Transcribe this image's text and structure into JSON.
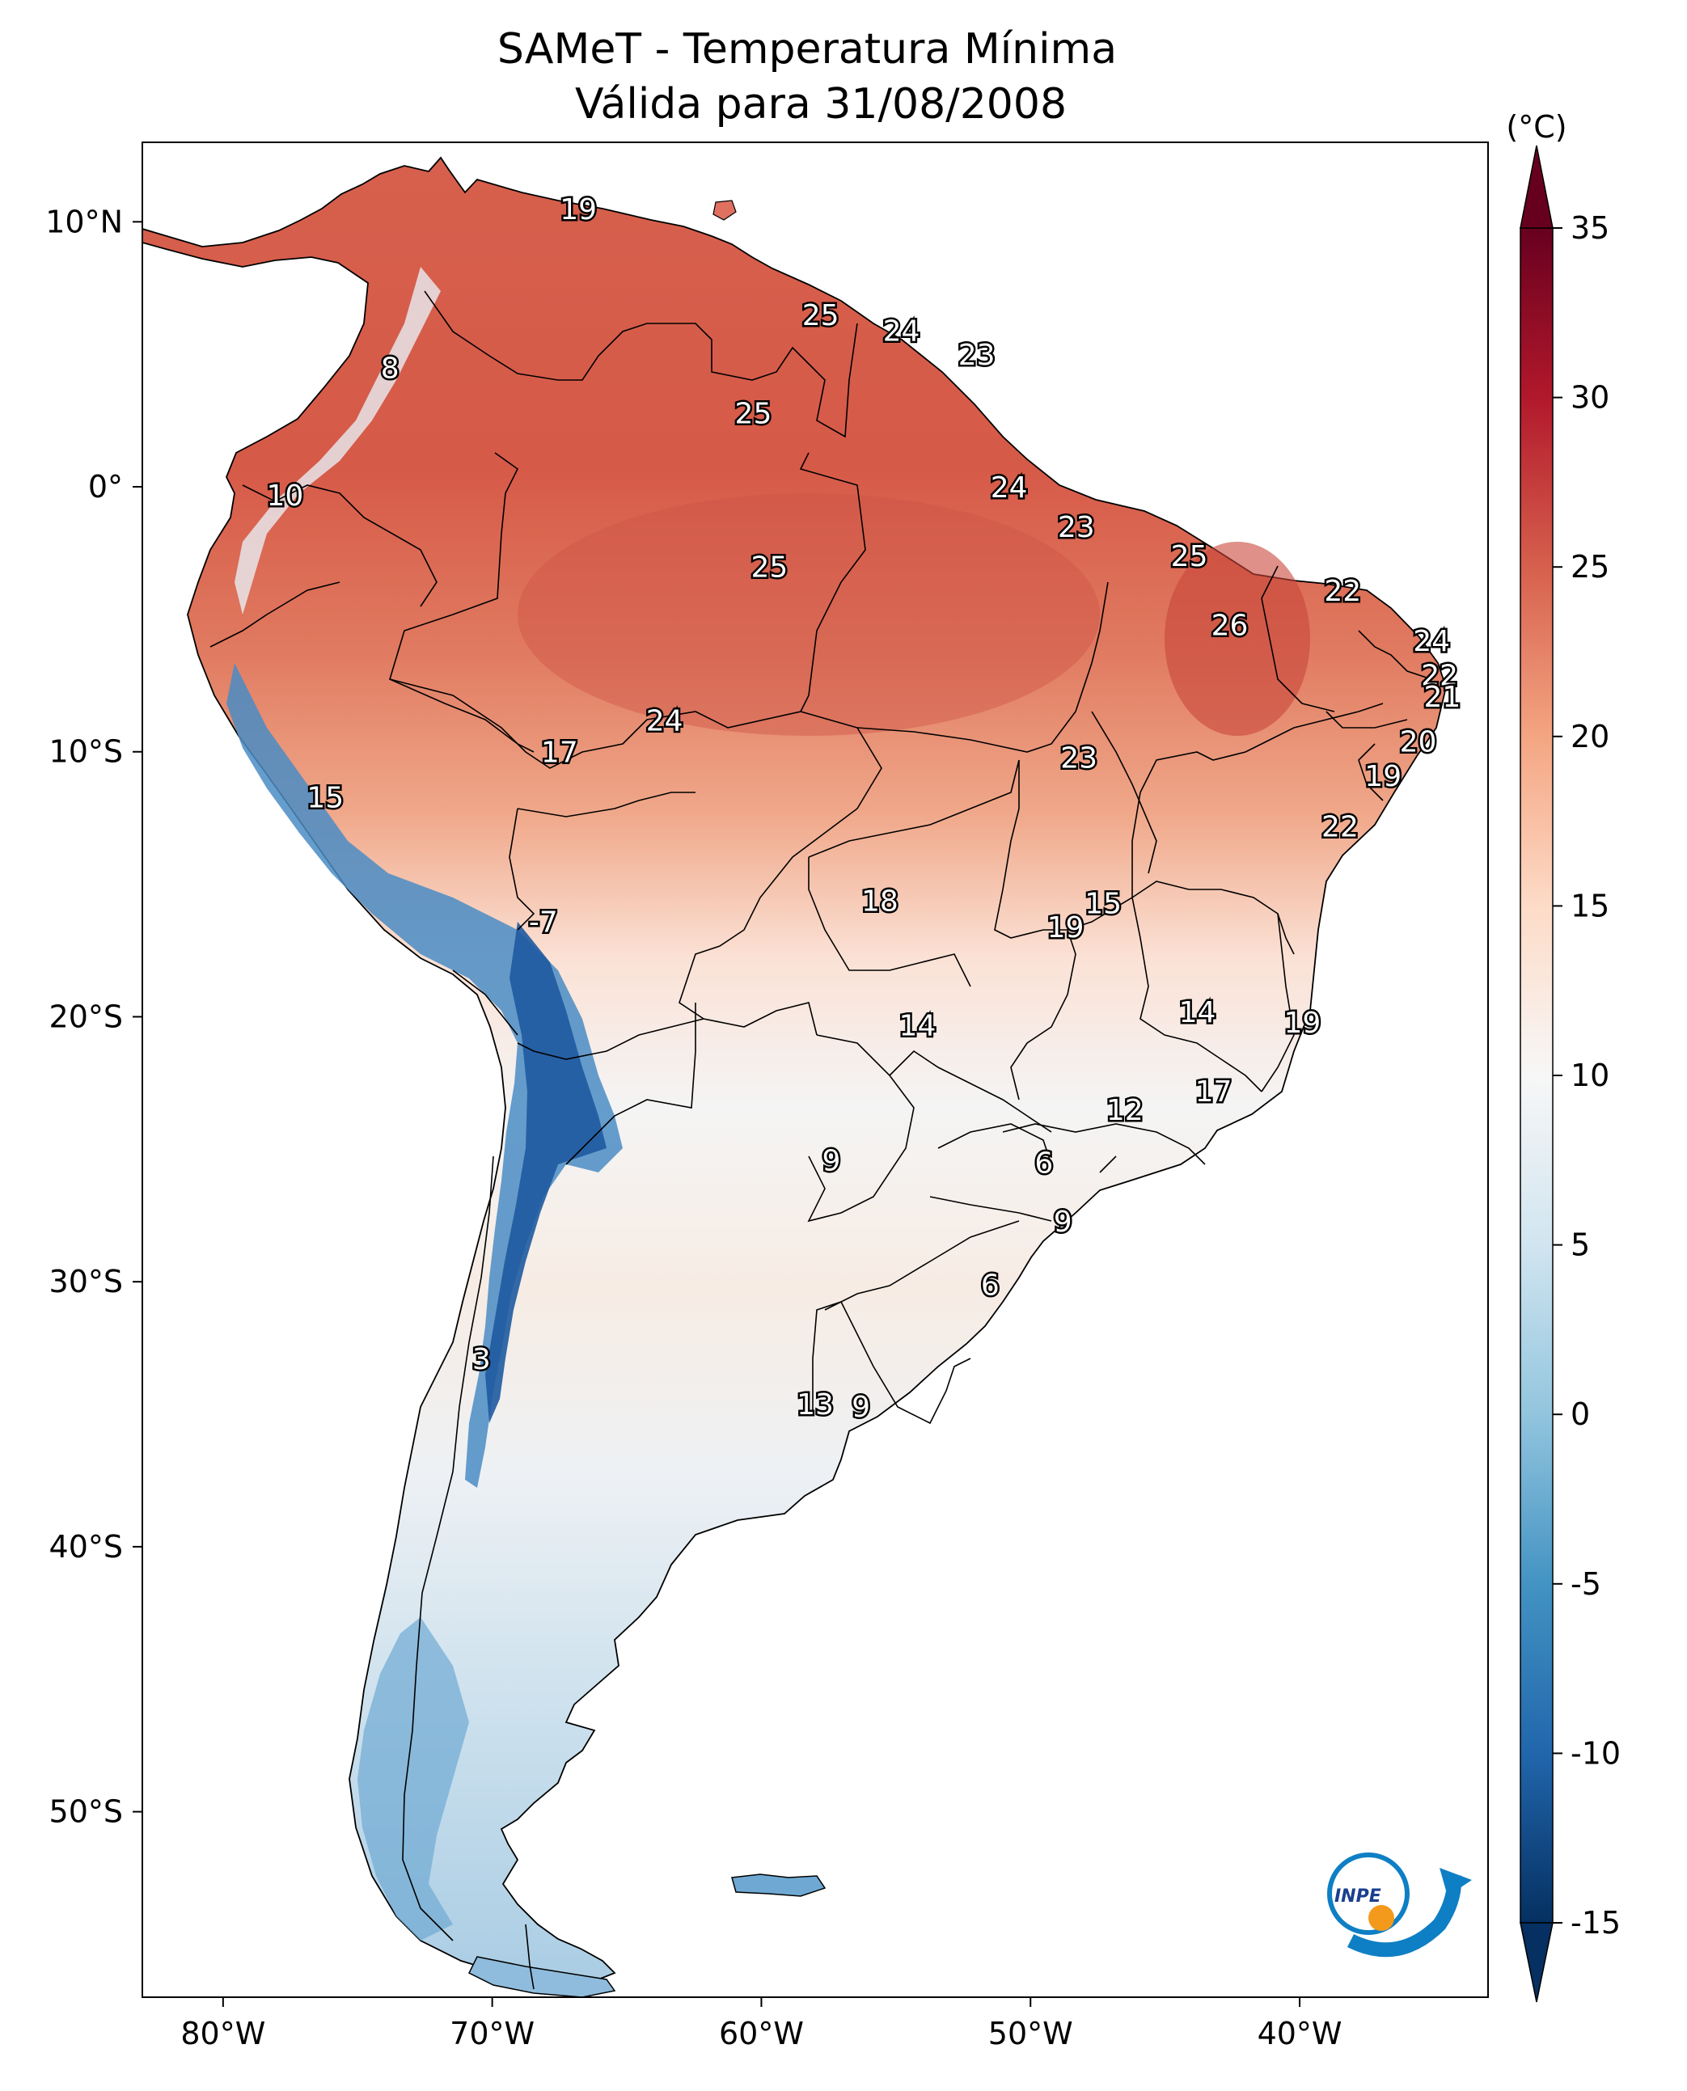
{
  "title": "SAMeT - Temperatura Mínima",
  "subtitle": "Válida para 31/08/2008",
  "unit": "(°C)",
  "axes": {
    "x_ticks": [
      {
        "lon": -80,
        "label": "80°W"
      },
      {
        "lon": -70,
        "label": "70°W"
      },
      {
        "lon": -60,
        "label": "60°W"
      },
      {
        "lon": -50,
        "label": "50°W"
      },
      {
        "lon": -40,
        "label": "40°W"
      }
    ],
    "y_ticks": [
      {
        "lat": 10,
        "label": "10°N"
      },
      {
        "lat": 0,
        "label": "0°"
      },
      {
        "lat": -10,
        "label": "10°S"
      },
      {
        "lat": -20,
        "label": "20°S"
      },
      {
        "lat": -30,
        "label": "30°S"
      },
      {
        "lat": -40,
        "label": "40°S"
      },
      {
        "lat": -50,
        "label": "50°S"
      }
    ],
    "lon_range": [
      -83,
      -33
    ],
    "lat_range": [
      -57,
      13
    ]
  },
  "colorbar": {
    "range": [
      -15,
      35
    ],
    "ticks": [
      {
        "v": 35,
        "label": "35"
      },
      {
        "v": 30,
        "label": "30"
      },
      {
        "v": 25,
        "label": "25"
      },
      {
        "v": 20,
        "label": "20"
      },
      {
        "v": 15,
        "label": "15"
      },
      {
        "v": 10,
        "label": "10"
      },
      {
        "v": 5,
        "label": "5"
      },
      {
        "v": 0,
        "label": "0"
      },
      {
        "v": -5,
        "label": "-5"
      },
      {
        "v": -10,
        "label": "-10"
      },
      {
        "v": -15,
        "label": "-15"
      }
    ],
    "colors": [
      "#053061",
      "#2166ac",
      "#4393c3",
      "#92c5de",
      "#d1e5f0",
      "#f7f7f7",
      "#fddbc7",
      "#f4a582",
      "#d6604d",
      "#b2182b",
      "#67001f"
    ]
  },
  "labels": [
    {
      "text": "19",
      "lon": -66.8,
      "lat": 10.5
    },
    {
      "text": "25",
      "lon": -57.8,
      "lat": 6.5
    },
    {
      "text": "24",
      "lon": -54.8,
      "lat": 5.9
    },
    {
      "text": "23",
      "lon": -52.0,
      "lat": 5.0
    },
    {
      "text": "8",
      "lon": -73.8,
      "lat": 4.5
    },
    {
      "text": "25",
      "lon": -60.3,
      "lat": 2.8
    },
    {
      "text": "10",
      "lon": -77.7,
      "lat": -0.3
    },
    {
      "text": "24",
      "lon": -50.8,
      "lat": 0.0
    },
    {
      "text": "23",
      "lon": -48.3,
      "lat": -1.5
    },
    {
      "text": "25",
      "lon": -59.7,
      "lat": -3.0
    },
    {
      "text": "25",
      "lon": -44.1,
      "lat": -2.6
    },
    {
      "text": "22",
      "lon": -38.4,
      "lat": -3.9
    },
    {
      "text": "26",
      "lon": -42.6,
      "lat": -5.2
    },
    {
      "text": "24",
      "lon": -35.1,
      "lat": -5.8
    },
    {
      "text": "22",
      "lon": -34.8,
      "lat": -7.1
    },
    {
      "text": "21",
      "lon": -34.7,
      "lat": -7.9
    },
    {
      "text": "24",
      "lon": -63.6,
      "lat": -8.8
    },
    {
      "text": "20",
      "lon": -35.6,
      "lat": -9.6
    },
    {
      "text": "17",
      "lon": -67.5,
      "lat": -10.0
    },
    {
      "text": "23",
      "lon": -48.2,
      "lat": -10.2
    },
    {
      "text": "19",
      "lon": -36.9,
      "lat": -10.9
    },
    {
      "text": "15",
      "lon": -76.2,
      "lat": -11.7
    },
    {
      "text": "22",
      "lon": -38.5,
      "lat": -12.8
    },
    {
      "text": "18",
      "lon": -55.6,
      "lat": -15.6
    },
    {
      "text": "15",
      "lon": -47.3,
      "lat": -15.7
    },
    {
      "text": "-7",
      "lon": -68.1,
      "lat": -16.4
    },
    {
      "text": "19",
      "lon": -48.7,
      "lat": -16.6
    },
    {
      "text": "14",
      "lon": -43.8,
      "lat": -19.8
    },
    {
      "text": "14",
      "lon": -54.2,
      "lat": -20.3
    },
    {
      "text": "19",
      "lon": -39.9,
      "lat": -20.2
    },
    {
      "text": "17",
      "lon": -43.2,
      "lat": -22.8
    },
    {
      "text": "12",
      "lon": -46.5,
      "lat": -23.5
    },
    {
      "text": "9",
      "lon": -57.4,
      "lat": -25.4
    },
    {
      "text": "6",
      "lon": -49.5,
      "lat": -25.5
    },
    {
      "text": "9",
      "lon": -48.8,
      "lat": -27.7
    },
    {
      "text": "6",
      "lon": -51.5,
      "lat": -30.1
    },
    {
      "text": "3",
      "lon": -70.4,
      "lat": -32.9
    },
    {
      "text": "13",
      "lon": -58.0,
      "lat": -34.6
    },
    {
      "text": "9",
      "lon": -56.3,
      "lat": -34.7
    }
  ]
}
